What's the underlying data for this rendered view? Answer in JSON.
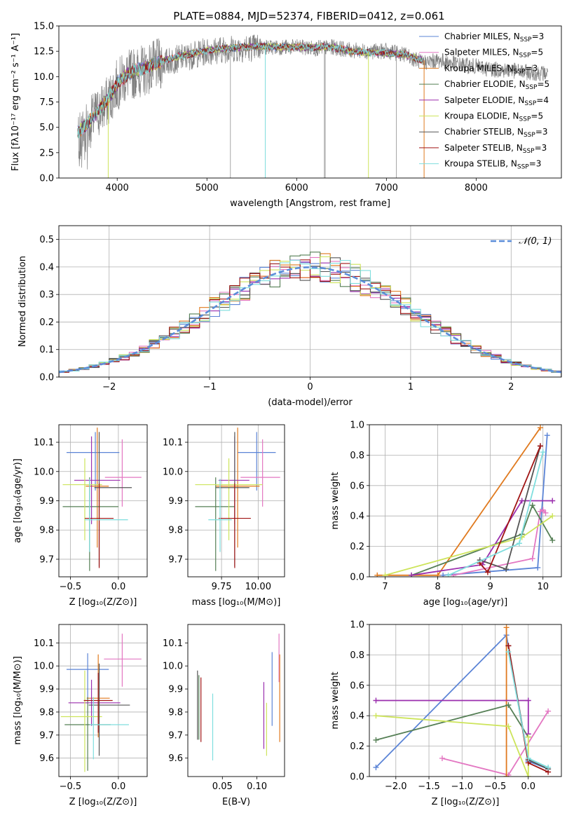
{
  "figure_title": "PLATE=0884, MJD=52374, FIBERID=0412, z=0.061",
  "colors": {
    "Chabrier MILES": "#5b84d6",
    "Salpeter MILES": "#e377c2",
    "Kroupa MILES": "#e07a1f",
    "Chabrier ELODIE": "#557f55",
    "Salpeter ELODIE": "#9b2fae",
    "Kroupa ELODIE": "#cde45b",
    "Chabrier STELIB": "#555555",
    "Salpeter STELIB": "#a01414",
    "Kroupa STELIB": "#7fdede",
    "data": "#808080",
    "normal": "#5b8dd9"
  },
  "chart_data": [
    {
      "id": "spectrum",
      "type": "line",
      "title": "PLATE=0884, MJD=52374, FIBERID=0412, z=0.061",
      "xlabel": "wavelength [Angstrom, rest frame]",
      "ylabel": "Flux [fλ10⁻¹⁷ erg cm⁻² s⁻¹ A⁻¹]",
      "xlim": [
        3350,
        8950
      ],
      "ylim": [
        0,
        15
      ],
      "xticks": [
        4000,
        5000,
        6000,
        7000,
        8000
      ],
      "yticks": [
        0.0,
        2.5,
        5.0,
        7.5,
        10.0,
        12.5,
        15.0
      ],
      "grid": false,
      "legend_position": "top-right",
      "legend": [
        {
          "label": "Chabrier MILES, N",
          "sub": "SSP",
          "suffix": "=3",
          "series": "Chabrier MILES"
        },
        {
          "label": "Salpeter MILES, N",
          "sub": "SSP",
          "suffix": "=5",
          "series": "Salpeter MILES"
        },
        {
          "label": "Kroupa MILES, N",
          "sub": "SSP",
          "suffix": "=3",
          "series": "Kroupa MILES"
        },
        {
          "label": "Chabrier ELODIE, N",
          "sub": "SSP",
          "suffix": "=5",
          "series": "Chabrier ELODIE"
        },
        {
          "label": "Salpeter ELODIE, N",
          "sub": "SSP",
          "suffix": "=4",
          "series": "Salpeter ELODIE"
        },
        {
          "label": "Kroupa ELODIE, N",
          "sub": "SSP",
          "suffix": "=5",
          "series": "Kroupa ELODIE"
        },
        {
          "label": "Chabrier STELIB, N",
          "sub": "SSP",
          "suffix": "=3",
          "series": "Chabrier STELIB"
        },
        {
          "label": "Salpeter STELIB, N",
          "sub": "SSP",
          "suffix": "=3",
          "series": "Salpeter STELIB"
        },
        {
          "label": "Kroupa STELIB, N",
          "sub": "SSP",
          "suffix": "=3",
          "series": "Kroupa STELIB"
        }
      ],
      "data_envelope": {
        "x": [
          3560,
          3700,
          3800,
          3900,
          4000,
          4100,
          4200,
          4300,
          4400,
          4600,
          4800,
          5000,
          5200,
          5400,
          5600,
          5800,
          6000,
          6200,
          6400,
          6600,
          6800,
          7000,
          7200,
          7400,
          7600,
          7800,
          8000,
          8200,
          8400,
          8600,
          8800
        ],
        "y": [
          4.0,
          5.5,
          6.6,
          7.6,
          9.2,
          10.0,
          10.4,
          10.6,
          11.0,
          11.6,
          12.0,
          12.5,
          12.7,
          12.8,
          12.9,
          12.9,
          12.9,
          12.8,
          12.9,
          12.6,
          12.5,
          12.5,
          12.2,
          11.4,
          11.6,
          11.2,
          11.0,
          10.7,
          10.6,
          10.4,
          10.3
        ]
      },
      "model_envelope": {
        "x": [
          3560,
          3700,
          3800,
          3900,
          4000,
          4100,
          4200,
          4300,
          4400,
          4600,
          4800,
          5000,
          5200,
          5400,
          5600,
          5800,
          6000,
          6200,
          6400,
          6600,
          6800,
          7000,
          7200,
          7400
        ],
        "y": [
          4.5,
          5.7,
          6.8,
          7.8,
          9.3,
          10.1,
          10.6,
          10.8,
          11.2,
          11.8,
          12.2,
          12.6,
          12.8,
          12.9,
          13.0,
          12.9,
          12.9,
          12.9,
          12.9,
          12.5,
          12.4,
          12.3,
          12.2,
          11.6
        ]
      }
    },
    {
      "id": "residuals",
      "type": "histogram",
      "xlabel": "(data-model)/error",
      "ylabel": "Normed distribution",
      "xlim": [
        -2.5,
        2.5
      ],
      "ylim": [
        0,
        0.55
      ],
      "xticks": [
        -2,
        -1,
        0,
        1,
        2
      ],
      "yticks": [
        0.0,
        0.1,
        0.2,
        0.3,
        0.4,
        0.5
      ],
      "grid": true,
      "legend_position": "top-right",
      "legend_label": "𝒩(0, 1)",
      "bin_edges_range": [
        -2.5,
        2.5
      ],
      "bin_count": 50,
      "normal_curve": {
        "mean": 0,
        "std": 1
      }
    },
    {
      "id": "age_vs_Z",
      "type": "scatter",
      "xlabel": "Z [log₁₀(Z/Z⊙)]",
      "ylabel": "age  [log₁₀(age/yr)]",
      "xlim": [
        -0.62,
        0.3
      ],
      "ylim": [
        9.64,
        10.16
      ],
      "xticks": [
        -0.5,
        0.0
      ],
      "yticks": [
        9.7,
        9.8,
        9.9,
        10.0,
        10.1
      ],
      "grid": true,
      "points": [
        {
          "series": "Chabrier MILES",
          "x": -0.24,
          "y": 10.065,
          "xerr": [
            0.3,
            0.25
          ],
          "yerr": [
            0.13,
            0.07
          ]
        },
        {
          "series": "Salpeter MILES",
          "x": 0.04,
          "y": 9.98,
          "xerr": [
            0.18,
            0.2
          ],
          "yerr": [
            0.1,
            0.13
          ]
        },
        {
          "series": "Kroupa MILES",
          "x": -0.22,
          "y": 9.95,
          "xerr": [
            0.12,
            0.12
          ],
          "yerr": [
            0.21,
            0.2
          ]
        },
        {
          "series": "Chabrier ELODIE",
          "x": -0.3,
          "y": 9.88,
          "xerr": [
            0.28,
            0.3
          ],
          "yerr": [
            0.22,
            0.1
          ]
        },
        {
          "series": "Salpeter ELODIE",
          "x": -0.28,
          "y": 9.97,
          "xerr": [
            0.18,
            0.3
          ],
          "yerr": [
            0.15,
            0.15
          ]
        },
        {
          "series": "Kroupa ELODIE",
          "x": -0.35,
          "y": 9.955,
          "xerr": [
            0.23,
            0.18
          ],
          "yerr": [
            0.19,
            0.09
          ]
        },
        {
          "series": "Chabrier STELIB",
          "x": -0.2,
          "y": 9.945,
          "xerr": [
            0.05,
            0.34
          ],
          "yerr": [
            0.27,
            0.19
          ]
        },
        {
          "series": "Salpeter STELIB",
          "x": -0.2,
          "y": 9.84,
          "xerr": [
            0.15,
            0.15
          ],
          "yerr": [
            0.17,
            0.12
          ]
        },
        {
          "series": "Kroupa STELIB",
          "x": -0.3,
          "y": 9.835,
          "xerr": [
            0.05,
            0.4
          ],
          "yerr": [
            0.11,
            0.14
          ]
        }
      ]
    },
    {
      "id": "age_vs_mass",
      "type": "scatter",
      "xlabel": "mass [log₁₀(M/M⊙)]",
      "ylabel": "",
      "xlim": [
        9.52,
        10.18
      ],
      "ylim": [
        9.64,
        10.16
      ],
      "xticks": [
        9.75,
        10.0
      ],
      "yticks": [
        9.7,
        9.8,
        9.9,
        10.0,
        10.1
      ],
      "grid": true,
      "points": [
        {
          "series": "Chabrier MILES",
          "x": 9.99,
          "y": 10.065,
          "xerr": [
            0.13,
            0.13
          ],
          "yerr": [
            0.13,
            0.07
          ]
        },
        {
          "series": "Salpeter MILES",
          "x": 10.03,
          "y": 9.98,
          "xerr": [
            0.15,
            0.12
          ],
          "yerr": [
            0.1,
            0.13
          ]
        },
        {
          "series": "Kroupa MILES",
          "x": 9.86,
          "y": 9.95,
          "xerr": [
            0.15,
            0.15
          ],
          "yerr": [
            0.21,
            0.2
          ]
        },
        {
          "series": "Chabrier ELODIE",
          "x": 9.71,
          "y": 9.88,
          "xerr": [
            0.14,
            0.13
          ],
          "yerr": [
            0.22,
            0.1
          ]
        },
        {
          "series": "Salpeter ELODIE",
          "x": 9.84,
          "y": 9.97,
          "xerr": [
            0.11,
            0.1
          ],
          "yerr": [
            0.15,
            0.15
          ]
        },
        {
          "series": "Kroupa ELODIE",
          "x": 9.8,
          "y": 9.955,
          "xerr": [
            0.23,
            0.23
          ],
          "yerr": [
            0.19,
            0.09
          ]
        },
        {
          "series": "Chabrier STELIB",
          "x": 9.84,
          "y": 9.945,
          "xerr": [
            0.13,
            0.1
          ],
          "yerr": [
            0.27,
            0.19
          ]
        },
        {
          "series": "Salpeter STELIB",
          "x": 9.84,
          "y": 9.84,
          "xerr": [
            0.11,
            0.11
          ],
          "yerr": [
            0.17,
            0.12
          ]
        },
        {
          "series": "Kroupa STELIB",
          "x": 9.74,
          "y": 9.835,
          "xerr": [
            0.08,
            0.08
          ],
          "yerr": [
            0.11,
            0.14
          ]
        }
      ]
    },
    {
      "id": "massweight_vs_age",
      "type": "line",
      "xlabel": "age  [log₁₀(age/yr)]",
      "ylabel": "mass weight",
      "xlim": [
        6.7,
        10.35
      ],
      "ylim": [
        0,
        1.0
      ],
      "xticks": [
        7,
        8,
        9,
        10
      ],
      "yticks": [
        0.0,
        0.2,
        0.4,
        0.6,
        0.8,
        1.0
      ],
      "grid": true,
      "series": [
        {
          "name": "Chabrier MILES",
          "x": [
            8.1,
            9.9,
            10.08
          ],
          "y": [
            0.01,
            0.06,
            0.93
          ]
        },
        {
          "name": "Salpeter MILES",
          "x": [
            8.3,
            9.8,
            9.95,
            10.0,
            10.05
          ],
          "y": [
            0.01,
            0.12,
            0.43,
            0.44,
            0.42
          ]
        },
        {
          "name": "Kroupa MILES",
          "x": [
            6.85,
            8.0,
            9.95
          ],
          "y": [
            0.01,
            0.01,
            0.98
          ]
        },
        {
          "name": "Chabrier ELODIE",
          "x": [
            7.5,
            9.6,
            9.8,
            10.18
          ],
          "y": [
            0.01,
            0.28,
            0.47,
            0.24
          ]
        },
        {
          "name": "Salpeter ELODIE",
          "x": [
            7.5,
            8.85,
            9.6,
            10.18
          ],
          "y": [
            0.01,
            0.08,
            0.5,
            0.5
          ]
        },
        {
          "name": "Kroupa ELODIE",
          "x": [
            7.0,
            9.6,
            10.18
          ],
          "y": [
            0.01,
            0.26,
            0.4
          ]
        },
        {
          "name": "Chabrier STELIB",
          "x": [
            8.8,
            9.3,
            9.95
          ],
          "y": [
            0.11,
            0.05,
            0.86
          ]
        },
        {
          "name": "Salpeter STELIB",
          "x": [
            8.8,
            8.95,
            9.95
          ],
          "y": [
            0.09,
            0.03,
            0.86
          ]
        },
        {
          "name": "Kroupa STELIB",
          "x": [
            8.2,
            9.55,
            10.0
          ],
          "y": [
            0.01,
            0.22,
            0.82
          ]
        }
      ]
    },
    {
      "id": "mass_vs_Z",
      "type": "scatter",
      "xlabel": "Z [log₁₀(Z/Z⊙)]",
      "ylabel": "mass [log₁₀(M/M⊙)]",
      "xlim": [
        -0.62,
        0.3
      ],
      "ylim": [
        9.52,
        10.18
      ],
      "xticks": [
        -0.5,
        0.0
      ],
      "yticks": [
        9.6,
        9.7,
        9.8,
        9.9,
        10.0,
        10.1
      ],
      "grid": true,
      "points": [
        {
          "series": "Chabrier MILES",
          "x": -0.32,
          "y": 9.985,
          "xerr": [
            0.22,
            0.22
          ],
          "yerr": [
            0.13,
            0.07
          ]
        },
        {
          "series": "Salpeter MILES",
          "x": 0.04,
          "y": 10.03,
          "xerr": [
            0.19,
            0.2
          ],
          "yerr": [
            0.12,
            0.11
          ]
        },
        {
          "series": "Kroupa MILES",
          "x": -0.21,
          "y": 9.86,
          "xerr": [
            0.12,
            0.12
          ],
          "yerr": [
            0.17,
            0.19
          ]
        },
        {
          "series": "Chabrier ELODIE",
          "x": -0.32,
          "y": 9.745,
          "xerr": [
            0.24,
            0.24
          ],
          "yerr": [
            0.2,
            0.12
          ]
        },
        {
          "series": "Salpeter ELODIE",
          "x": -0.28,
          "y": 9.84,
          "xerr": [
            0.24,
            0.3
          ],
          "yerr": [
            0.1,
            0.1
          ]
        },
        {
          "series": "Kroupa ELODIE",
          "x": -0.35,
          "y": 9.78,
          "xerr": [
            0.25,
            0.18
          ],
          "yerr": [
            0.24,
            0.2
          ]
        },
        {
          "series": "Chabrier STELIB",
          "x": -0.2,
          "y": 9.83,
          "xerr": [
            0.11,
            0.32
          ],
          "yerr": [
            0.22,
            0.18
          ]
        },
        {
          "series": "Salpeter STELIB",
          "x": -0.21,
          "y": 9.85,
          "xerr": [
            0.15,
            0.15
          ],
          "yerr": [
            0.14,
            0.12
          ]
        },
        {
          "series": "Kroupa STELIB",
          "x": -0.26,
          "y": 9.745,
          "xerr": [
            0.04,
            0.37
          ],
          "yerr": [
            0.15,
            0.12
          ]
        }
      ]
    },
    {
      "id": "mass_vs_EBV",
      "type": "scatter",
      "xlabel": "E(B-V)",
      "ylabel": "",
      "xlim": [
        0.0,
        0.14
      ],
      "ylim": [
        9.52,
        10.18
      ],
      "xticks": [
        0.05,
        0.1
      ],
      "yticks": [
        9.6,
        9.7,
        9.8,
        9.9,
        10.0,
        10.1
      ],
      "grid": false,
      "points": [
        {
          "series": "Chabrier MILES",
          "x": 0.122,
          "y": 9.9,
          "yerr": [
            0.16,
            0.16
          ]
        },
        {
          "series": "Salpeter MILES",
          "x": 0.132,
          "y": 10.04,
          "yerr": [
            0.11,
            0.1
          ]
        },
        {
          "series": "Kroupa MILES",
          "x": 0.133,
          "y": 9.86,
          "yerr": [
            0.19,
            0.19
          ]
        },
        {
          "series": "Chabrier ELODIE",
          "x": 0.016,
          "y": 9.82,
          "yerr": [
            0.14,
            0.14
          ]
        },
        {
          "series": "Salpeter ELODIE",
          "x": 0.11,
          "y": 9.78,
          "yerr": [
            0.14,
            0.15
          ]
        },
        {
          "series": "Kroupa ELODIE",
          "x": 0.114,
          "y": 9.72,
          "yerr": [
            0.11,
            0.12
          ]
        },
        {
          "series": "Chabrier STELIB",
          "x": 0.014,
          "y": 9.83,
          "yerr": [
            0.15,
            0.15
          ]
        },
        {
          "series": "Salpeter STELIB",
          "x": 0.019,
          "y": 9.8,
          "yerr": [
            0.13,
            0.15
          ]
        },
        {
          "series": "Kroupa STELIB",
          "x": 0.036,
          "y": 9.73,
          "yerr": [
            0.14,
            0.15
          ]
        }
      ]
    },
    {
      "id": "massweight_vs_Z",
      "type": "line",
      "xlabel": "Z [log₁₀(Z/Z⊙)]",
      "ylabel": "mass weight",
      "xlim": [
        -2.4,
        0.5
      ],
      "ylim": [
        0,
        1.0
      ],
      "xticks": [
        -2.0,
        -1.5,
        -1.0,
        -0.5,
        0.0
      ],
      "yticks": [
        0.0,
        0.2,
        0.4,
        0.6,
        0.8,
        1.0
      ],
      "grid": true,
      "series": [
        {
          "name": "Chabrier MILES",
          "x": [
            -2.3,
            -0.33,
            0.0,
            0.3
          ],
          "y": [
            0.06,
            0.93,
            0.1,
            0.05
          ]
        },
        {
          "name": "Salpeter MILES",
          "x": [
            -1.3,
            -0.3,
            0.3
          ],
          "y": [
            0.12,
            0.01,
            0.43
          ]
        },
        {
          "name": "Kroupa MILES",
          "x": [
            -0.33,
            -0.33,
            -0.33
          ],
          "y": [
            0.0,
            0.5,
            0.98
          ]
        },
        {
          "name": "Chabrier ELODIE",
          "x": [
            -2.3,
            -0.3,
            0.0
          ],
          "y": [
            0.24,
            0.47,
            0.26
          ]
        },
        {
          "name": "Salpeter ELODIE",
          "x": [
            -2.3,
            0.0,
            0.0
          ],
          "y": [
            0.5,
            0.5,
            0.28
          ]
        },
        {
          "name": "Kroupa ELODIE",
          "x": [
            -2.3,
            -0.3,
            0.0,
            0.0
          ],
          "y": [
            0.4,
            0.33,
            0.0,
            0.26
          ]
        },
        {
          "name": "Chabrier STELIB",
          "x": [
            -0.3,
            0.0,
            0.3
          ],
          "y": [
            0.86,
            0.11,
            0.05
          ]
        },
        {
          "name": "Salpeter STELIB",
          "x": [
            -0.3,
            0.0,
            0.3
          ],
          "y": [
            0.86,
            0.09,
            0.03
          ]
        },
        {
          "name": "Kroupa STELIB",
          "x": [
            -0.3,
            0.0,
            0.3
          ],
          "y": [
            0.82,
            0.12,
            0.06
          ]
        }
      ]
    }
  ]
}
